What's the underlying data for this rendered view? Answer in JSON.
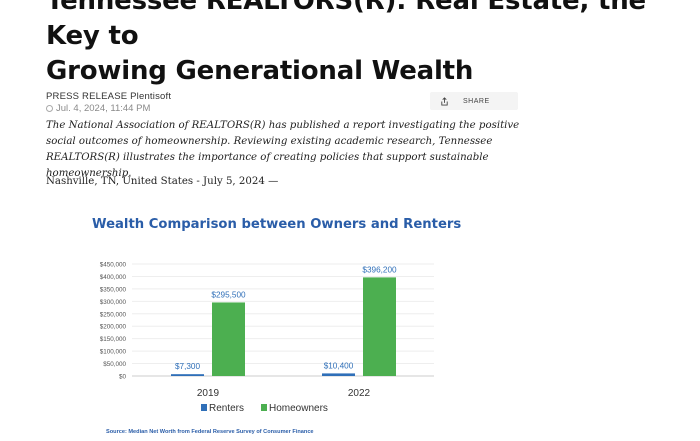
{
  "article": {
    "headline_line1": "Tennessee REALTORS(R): Real Estate, the Key to",
    "headline_line2": "Growing Generational Wealth",
    "byline": "PRESS RELEASE Plentisoft",
    "date": "Jul. 4, 2024, 11:44 PM",
    "share_label": "SHARE",
    "summary": "The National Association of REALTORS(R) has published a report investigating the positive social outcomes of homeownership. Reviewing existing academic research, Tennessee REALTORS(R) illustrates the importance of creating policies that support sustainable homeownership.",
    "location": "Nashville, TN, United States - July 5, 2024 —"
  },
  "icons": {
    "share": "share-icon",
    "clock": "clock-icon"
  },
  "colors": {
    "renters": "#2f6fb8",
    "homeowners": "#4caf50",
    "title_blue": "#2a5da8"
  },
  "chart_data": {
    "type": "bar",
    "title": "Wealth Comparison between Owners and Renters",
    "categories": [
      "2019",
      "2022"
    ],
    "series": [
      {
        "name": "Renters",
        "values": [
          7300,
          10400
        ],
        "labels": [
          "$7,300",
          "$10,400"
        ]
      },
      {
        "name": "Homeowners",
        "values": [
          295500,
          396200
        ],
        "labels": [
          "$295,500",
          "$396,200"
        ]
      }
    ],
    "yticks": [
      "$0",
      "$50,000",
      "$100,000",
      "$150,000",
      "$200,000",
      "$250,000",
      "$300,000",
      "$350,000",
      "$400,000",
      "$450,000"
    ],
    "ylim": [
      0,
      450000
    ],
    "grid": true,
    "legend": "bottom",
    "source": "Source: Median Net Worth from Federal Reserve Survey of Consumer Finance"
  }
}
